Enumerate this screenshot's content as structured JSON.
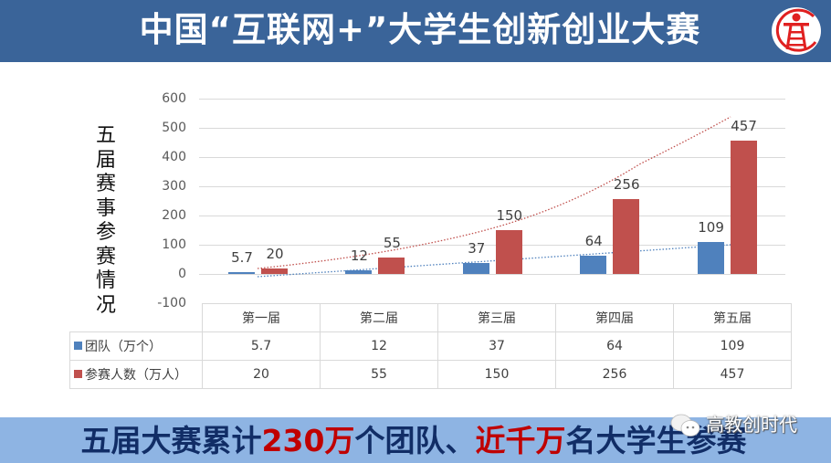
{
  "header": {
    "title": "中国“互联网+”大学生创新创业大赛",
    "logo": "competition-emblem-icon",
    "bg_color": "#3a6499"
  },
  "y_axis_label_chars": [
    "五",
    "届",
    "赛",
    "事",
    "参",
    "赛",
    "情",
    "况"
  ],
  "y_ticks": [
    "600",
    "500",
    "400",
    "300",
    "200",
    "100",
    "0",
    "-100"
  ],
  "table": {
    "columns": [
      "第一届",
      "第二届",
      "第三届",
      "第四届",
      "第五届"
    ],
    "rows": [
      {
        "label": "团队（万个）",
        "color": "#4f81bd",
        "values": [
          "5.7",
          "12",
          "37",
          "64",
          "109"
        ]
      },
      {
        "label": "参赛人数（万人）",
        "color": "#c0504d",
        "values": [
          "20",
          "55",
          "150",
          "256",
          "457"
        ]
      }
    ]
  },
  "footer": {
    "part1": "五届大赛累计",
    "hl1": "230万",
    "part2": "个团队、",
    "hl2": "近千万",
    "part3": "名大学生参赛",
    "bg_color": "#8eb4e3",
    "text_color": "#112d66",
    "highlight_color": "#c00000"
  },
  "watermark": {
    "icon": "wechat-icon",
    "text": "高教创时代"
  },
  "chart_data": {
    "type": "bar",
    "title": "",
    "ylabel": "五届赛事参赛情况",
    "xlabel": "",
    "categories": [
      "第一届",
      "第二届",
      "第三届",
      "第四届",
      "第五届"
    ],
    "series": [
      {
        "name": "团队（万个）",
        "color": "#4f81bd",
        "values": [
          5.7,
          12,
          37,
          64,
          109
        ],
        "trendline": "linear"
      },
      {
        "name": "参赛人数（万人）",
        "color": "#c0504d",
        "values": [
          20,
          55,
          150,
          256,
          457
        ],
        "trendline": "exponential"
      }
    ],
    "ylim": [
      -100,
      600
    ],
    "y_ticks": [
      -100,
      0,
      100,
      200,
      300,
      400,
      500,
      600
    ],
    "grid": true,
    "legend": "data-table below chart",
    "data_labels": true
  }
}
